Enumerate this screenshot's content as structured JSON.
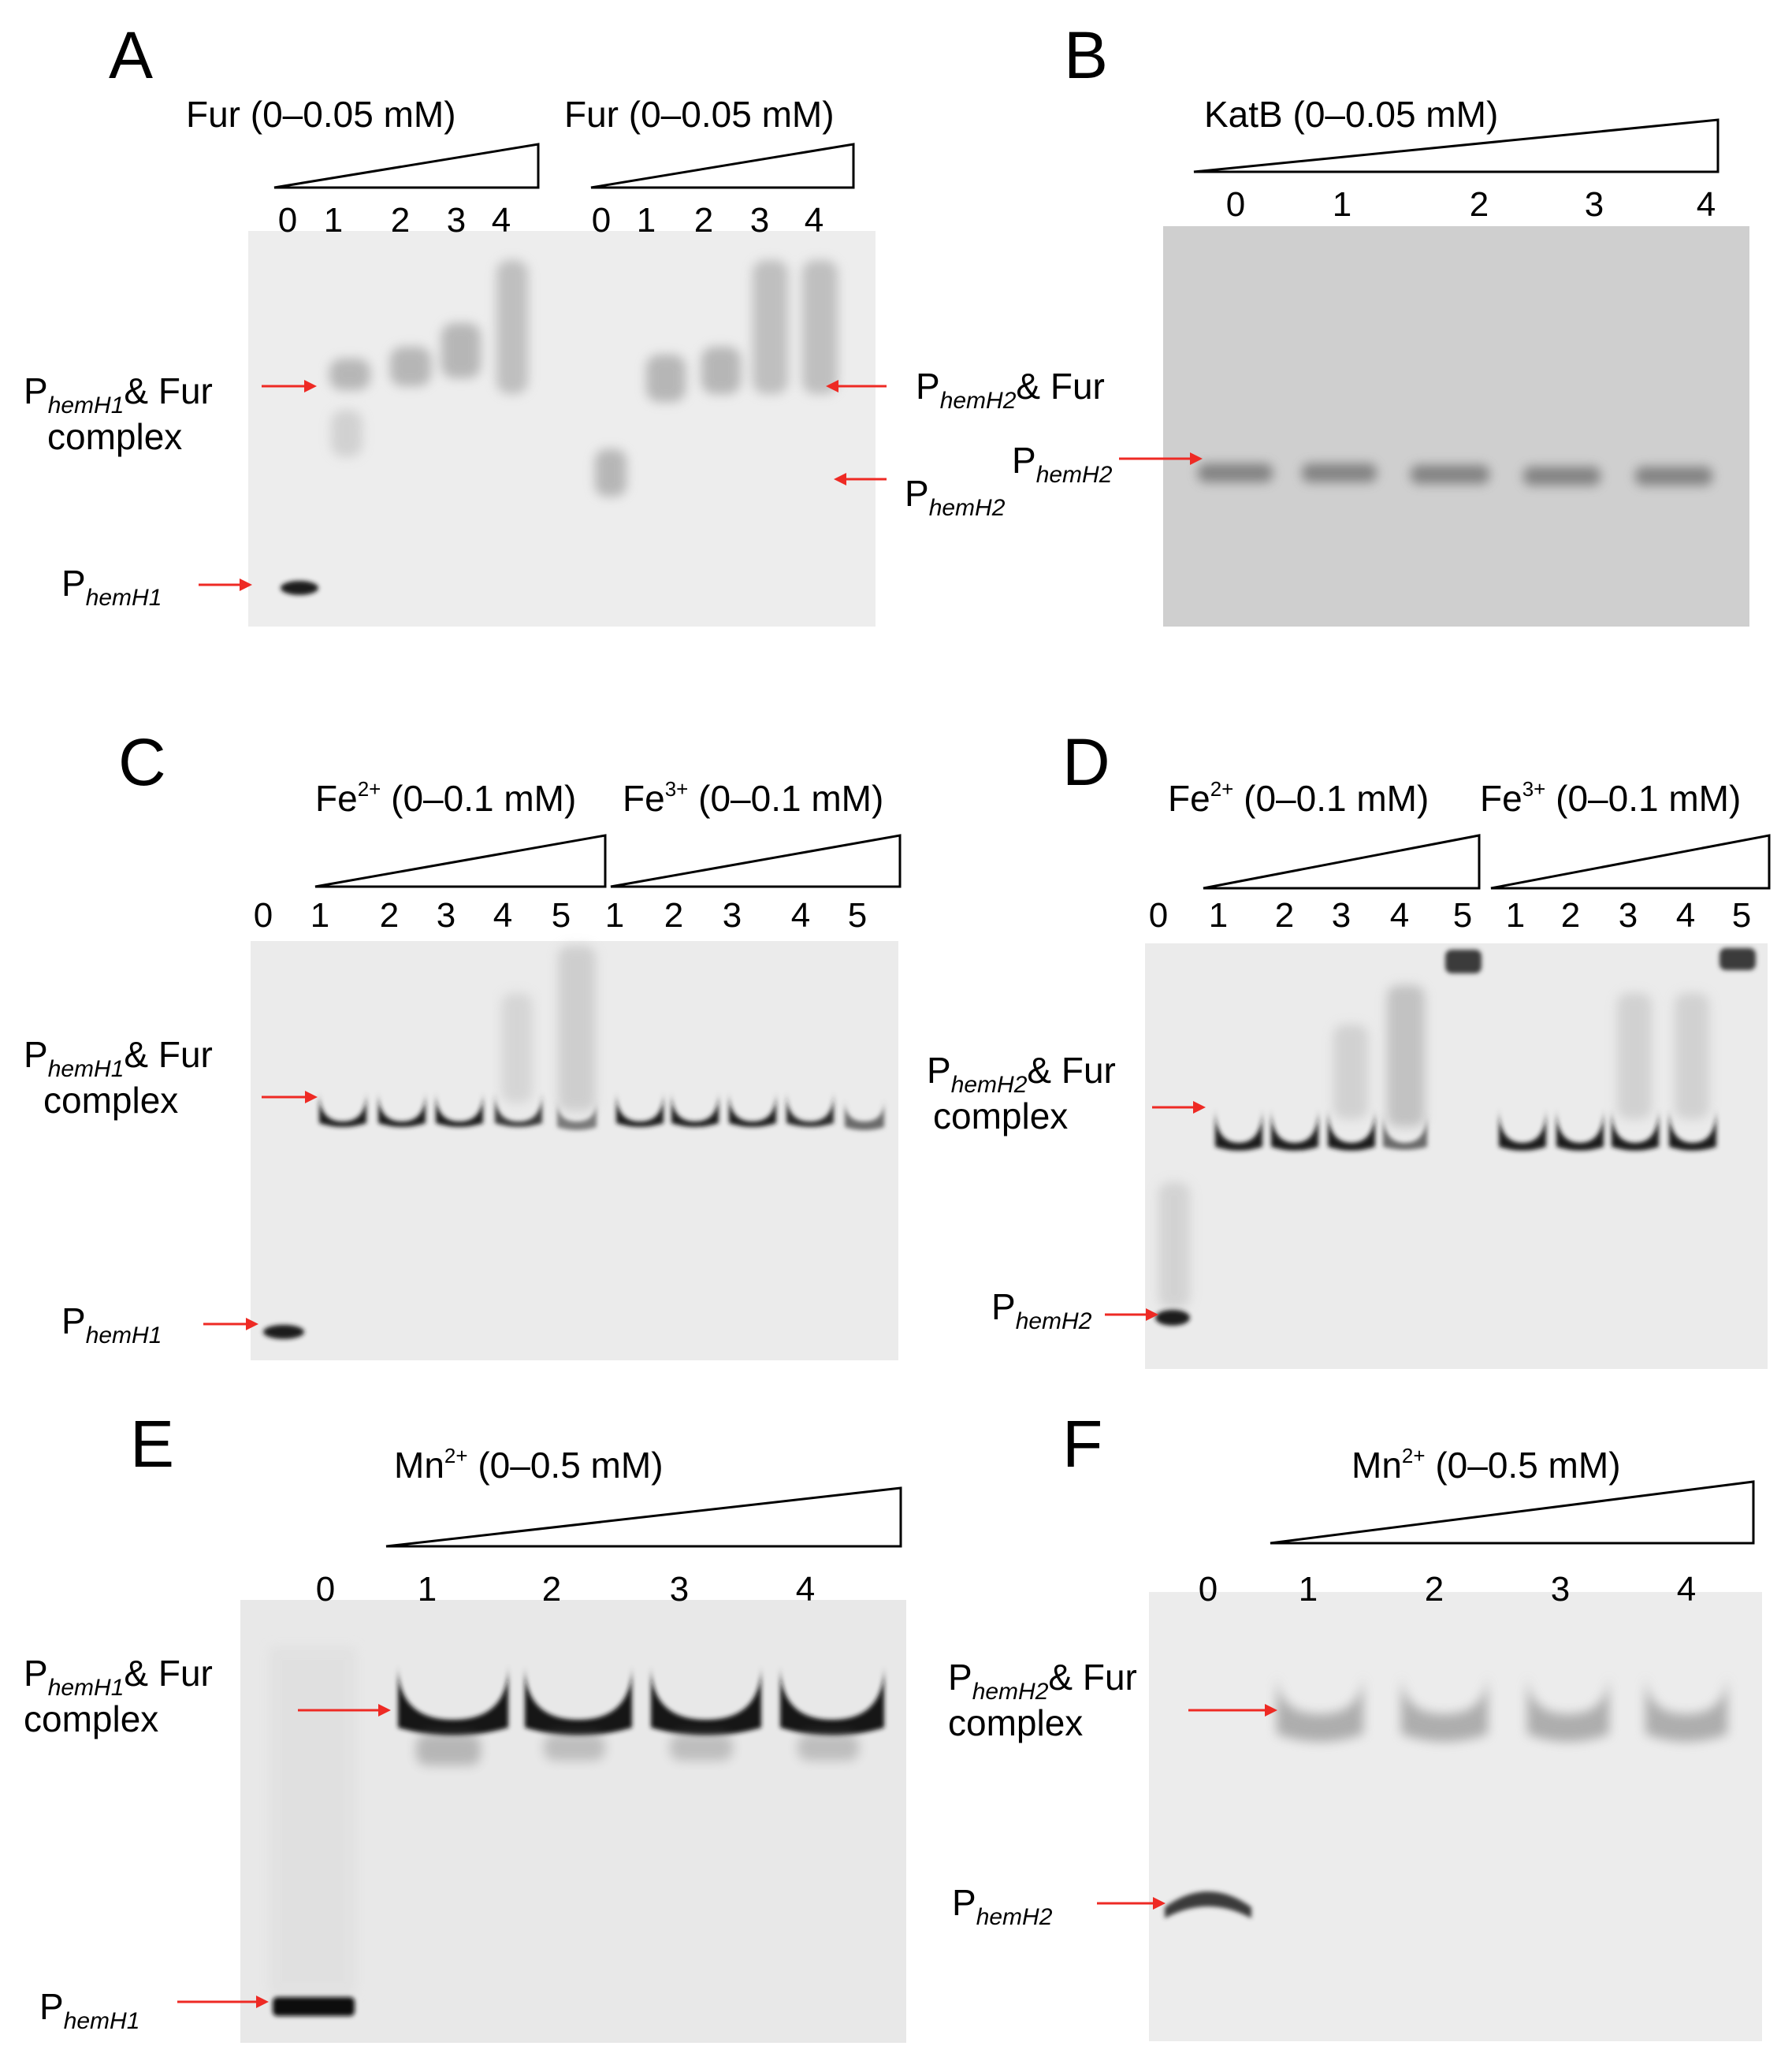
{
  "colors": {
    "arrow": "#ee2a24",
    "gel_light": "#ececec",
    "gel_grey": "#cfcfcf",
    "band_dark": "#1a1a1a"
  },
  "panels": {
    "A": {
      "letter": "A",
      "header_left": "Fur (0–0.05 mM)",
      "header_right": "Fur (0–0.05 mM)",
      "lanes_left": [
        "0",
        "1",
        "2",
        "3",
        "4"
      ],
      "lanes_right": [
        "0",
        "1",
        "2",
        "3",
        "4"
      ],
      "label_complex_prefix": "P",
      "label_complex_sub": "hemH1",
      "label_complex_suffix": "& Fur",
      "label_complex_line2": "complex",
      "label_free_prefix": "P",
      "label_free_sub": "hemH1",
      "label_r_complex_prefix": "P",
      "label_r_complex_sub": "hemH2",
      "label_r_complex_suffix": "& Fur",
      "label_r_free_prefix": "P",
      "label_r_free_sub": "hemH2"
    },
    "B": {
      "letter": "B",
      "header": "KatB (0–0.05 mM)",
      "lanes": [
        "0",
        "1",
        "2",
        "3",
        "4"
      ],
      "label_prefix": "P",
      "label_sub": "hemH2"
    },
    "C": {
      "letter": "C",
      "header_fe2": "Fe",
      "header_fe2_sup": "2+",
      "header_fe2_range": " (0–0.1 mM)",
      "header_fe3": "Fe",
      "header_fe3_sup": "3+",
      "header_fe3_range": " (0–0.1 mM)",
      "lanes": [
        "0",
        "1",
        "2",
        "3",
        "4",
        "5",
        "1",
        "2",
        "3",
        "4",
        "5"
      ],
      "label_complex_prefix": "P",
      "label_complex_sub": "hemH1",
      "label_complex_suffix": "& Fur",
      "label_complex_line2": "complex",
      "label_free_prefix": "P",
      "label_free_sub": "hemH1"
    },
    "D": {
      "letter": "D",
      "header_fe2": "Fe",
      "header_fe2_sup": "2+",
      "header_fe2_range": " (0–0.1 mM)",
      "header_fe3": "Fe",
      "header_fe3_sup": "3+",
      "header_fe3_range": " (0–0.1 mM)",
      "lanes": [
        "0",
        "1",
        "2",
        "3",
        "4",
        "5",
        "1",
        "2",
        "3",
        "4",
        "5"
      ],
      "label_complex_prefix": "P",
      "label_complex_sub": "hemH2",
      "label_complex_suffix": "& Fur",
      "label_complex_line2": "complex",
      "label_free_prefix": "P",
      "label_free_sub": "hemH2"
    },
    "E": {
      "letter": "E",
      "header": "Mn",
      "header_sup": "2+",
      "header_range": " (0–0.5 mM)",
      "lanes": [
        "0",
        "1",
        "2",
        "3",
        "4"
      ],
      "label_complex_prefix": "P",
      "label_complex_sub": "hemH1",
      "label_complex_suffix": "& Fur",
      "label_complex_line2": "complex",
      "label_free_prefix": "P",
      "label_free_sub": "hemH1"
    },
    "F": {
      "letter": "F",
      "header": "Mn",
      "header_sup": "2+",
      "header_range": " (0–0.5 mM)",
      "lanes": [
        "0",
        "1",
        "2",
        "3",
        "4"
      ],
      "label_complex_prefix": "P",
      "label_complex_sub": "hemH2",
      "label_complex_suffix": "& Fur",
      "label_complex_line2": "complex",
      "label_free_prefix": "P",
      "label_free_sub": "hemH2"
    }
  }
}
